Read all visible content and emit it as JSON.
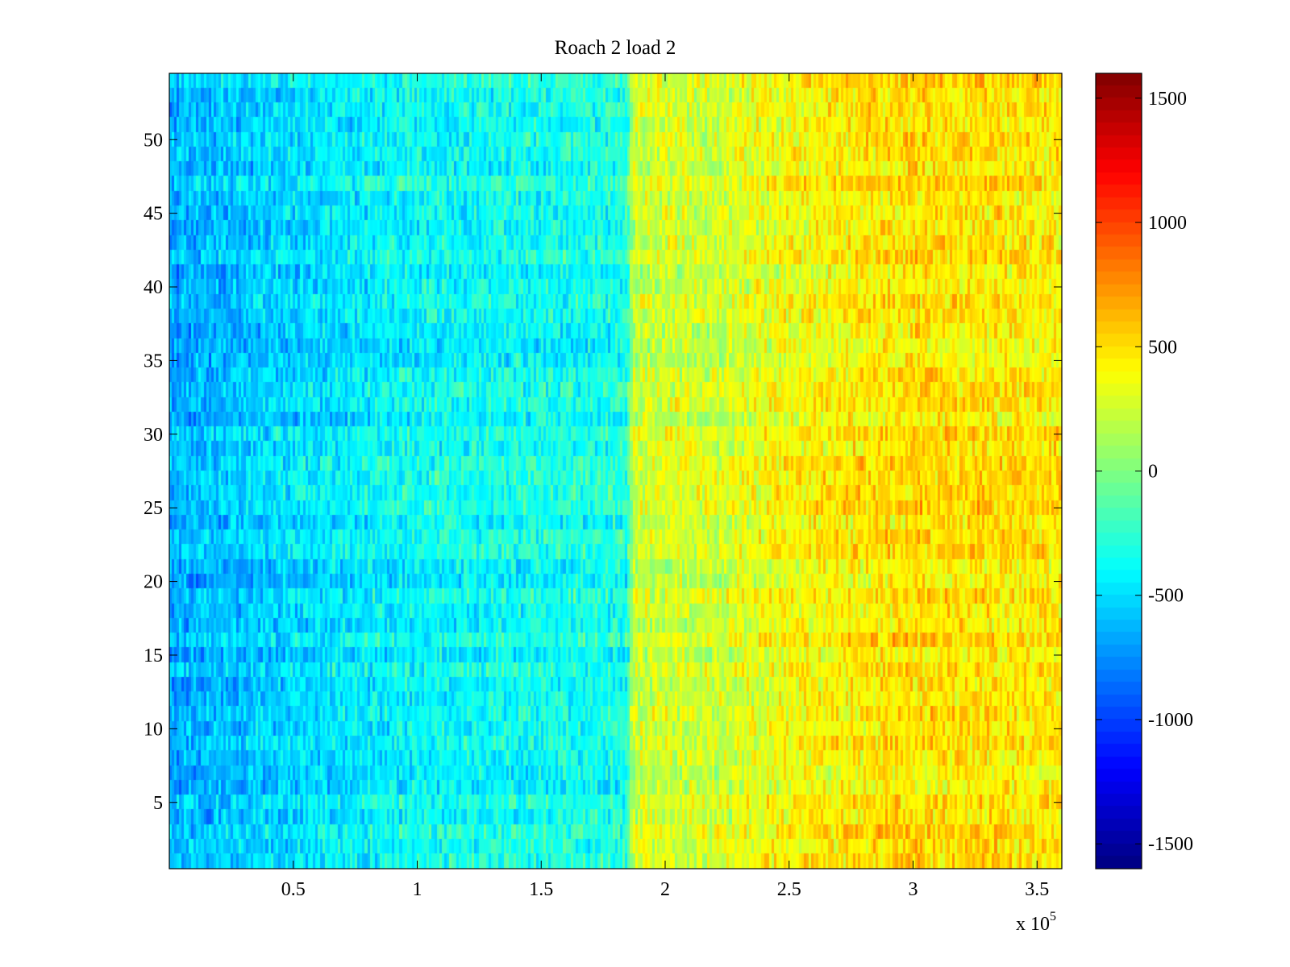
{
  "chart_data": {
    "type": "heatmap",
    "title": "Roach 2 load 2",
    "xlabel": "",
    "ylabel": "",
    "x_multiplier_label": "x 10",
    "x_multiplier_exponent": "5",
    "xlim": [
      0,
      3.6
    ],
    "ylim": [
      0.5,
      54.5
    ],
    "xticks": [
      0.5,
      1,
      1.5,
      2,
      2.5,
      3,
      3.5
    ],
    "xtick_labels": [
      "0.5",
      "1",
      "1.5",
      "2",
      "2.5",
      "3",
      "3.5"
    ],
    "yticks": [
      5,
      10,
      15,
      20,
      25,
      30,
      35,
      40,
      45,
      50
    ],
    "ytick_labels": [
      "5",
      "10",
      "15",
      "20",
      "25",
      "30",
      "35",
      "40",
      "45",
      "50"
    ],
    "rows": 54,
    "columns": 360,
    "colormap": "jet",
    "clim": [
      -1500,
      1500
    ],
    "colorbar_ticks": [
      1500,
      1000,
      500,
      0,
      -500,
      -1000,
      -1500
    ],
    "colorbar_tick_labels": [
      "1500",
      "1000",
      "500",
      "0",
      "-500",
      "-1000",
      "-1500"
    ],
    "value_trend": {
      "x_breakpoints": [
        0,
        0.5,
        1.0,
        1.5,
        1.85,
        1.87,
        2.0,
        2.2,
        2.5,
        3.0,
        3.5,
        3.6
      ],
      "mean_values": [
        -620,
        -480,
        -360,
        -330,
        -300,
        210,
        250,
        230,
        360,
        470,
        430,
        420
      ],
      "noise_amplitude": 280
    },
    "colors": {
      "axis": "#000000",
      "background": "#ffffff"
    }
  }
}
